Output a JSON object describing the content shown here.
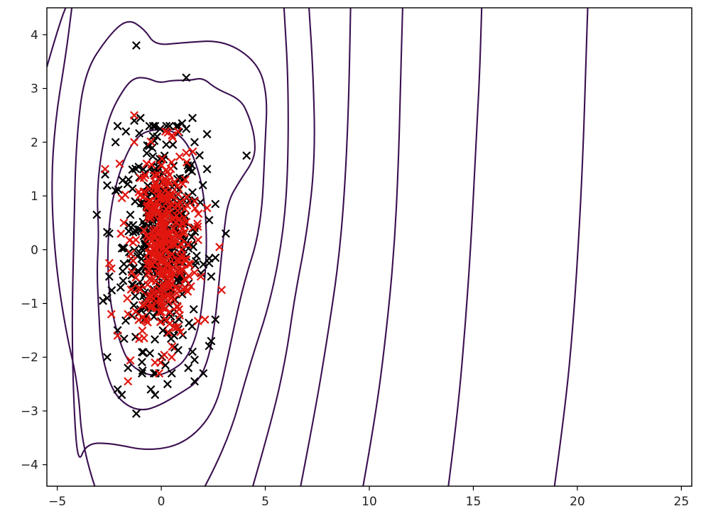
{
  "chart_data": {
    "type": "scatter",
    "title": "",
    "xlabel": "",
    "ylabel": "",
    "xlim": [
      -5.5,
      25.5
    ],
    "ylim": [
      -4.4,
      4.5
    ],
    "x_ticks": [
      -5,
      0,
      5,
      10,
      15,
      20,
      25
    ],
    "y_ticks": [
      -4,
      -3,
      -2,
      -1,
      0,
      1,
      2,
      3,
      4
    ],
    "x_tick_labels": [
      "−5",
      "0",
      "5",
      "10",
      "15",
      "20",
      "25"
    ],
    "y_tick_labels": [
      "−4",
      "−3",
      "−2",
      "−1",
      "0",
      "1",
      "2",
      "3",
      "4"
    ],
    "grid": false,
    "marker": "x",
    "contour_color": "#3b0f50",
    "series": [
      {
        "color": "#000000",
        "points": [
          [
            -1.2,
            3.8
          ],
          [
            1.2,
            3.2
          ],
          [
            -2.1,
            2.3
          ],
          [
            -1.3,
            2.4
          ],
          [
            -1.0,
            2.45
          ],
          [
            -0.3,
            2.3
          ],
          [
            0.4,
            2.3
          ],
          [
            1.0,
            2.35
          ],
          [
            1.5,
            2.45
          ],
          [
            2.2,
            2.15
          ],
          [
            -2.2,
            2.0
          ],
          [
            -1.7,
            2.2
          ],
          [
            1.2,
            2.25
          ],
          [
            1.6,
            2.0
          ],
          [
            4.1,
            1.75
          ],
          [
            -2.7,
            1.4
          ],
          [
            -2.2,
            1.1
          ],
          [
            2.2,
            1.5
          ],
          [
            2.0,
            1.2
          ],
          [
            -3.1,
            0.65
          ],
          [
            -2.5,
            0.3
          ],
          [
            3.1,
            0.3
          ],
          [
            2.6,
            0.85
          ],
          [
            2.3,
            0.55
          ],
          [
            -2.5,
            -0.5
          ],
          [
            -2.6,
            -0.9
          ],
          [
            2.4,
            -0.5
          ],
          [
            2.6,
            -0.15
          ],
          [
            2.3,
            -0.25
          ],
          [
            -2.8,
            -0.95
          ],
          [
            2.6,
            -1.3
          ],
          [
            -2.1,
            -1.5
          ],
          [
            2.4,
            -1.7
          ],
          [
            -2.6,
            -2.0
          ],
          [
            1.5,
            -1.9
          ],
          [
            -1.6,
            -2.2
          ],
          [
            1.3,
            -2.2
          ],
          [
            1.6,
            -2.05
          ],
          [
            -2.1,
            -2.6
          ],
          [
            -1.9,
            -2.7
          ],
          [
            -1.2,
            -3.05
          ],
          [
            -0.5,
            -2.6
          ],
          [
            0.3,
            -2.5
          ],
          [
            1.6,
            -2.45
          ],
          [
            -0.9,
            -2.25
          ],
          [
            0.2,
            -2.15
          ],
          [
            -0.3,
            -2.7
          ],
          [
            0.5,
            -2.3
          ]
        ],
        "cloud": {
          "count": 420,
          "center": [
            0.0,
            0.1
          ],
          "std": [
            0.9,
            0.95
          ],
          "x_range": [
            -2.6,
            2.3
          ],
          "y_range": [
            -2.3,
            2.3
          ]
        }
      },
      {
        "color": "#e0160f",
        "points": [
          [
            -1.3,
            2.5
          ],
          [
            -2.7,
            1.5
          ],
          [
            -1.3,
            2.0
          ],
          [
            0.2,
            2.2
          ],
          [
            0.8,
            2.2
          ],
          [
            1.2,
            1.8
          ],
          [
            -2.0,
            1.6
          ],
          [
            2.8,
            0.05
          ],
          [
            2.9,
            -0.75
          ],
          [
            -2.4,
            -0.35
          ],
          [
            -1.8,
            0.5
          ],
          [
            -2.1,
            -1.6
          ],
          [
            -2.4,
            -1.2
          ],
          [
            1.9,
            -0.5
          ],
          [
            -2.5,
            -0.25
          ],
          [
            -1.6,
            -2.45
          ],
          [
            -0.1,
            -2.3
          ],
          [
            0.5,
            -2.0
          ],
          [
            2.1,
            -1.3
          ],
          [
            -0.7,
            1.6
          ],
          [
            1.6,
            0.9
          ],
          [
            -1.6,
            -1.2
          ]
        ],
        "cloud": {
          "count": 360,
          "center": [
            0.1,
            0.1
          ],
          "std": [
            0.7,
            0.85
          ],
          "x_range": [
            -2.2,
            2.2
          ],
          "y_range": [
            -2.1,
            2.2
          ]
        }
      }
    ],
    "contours": [
      [
        [
          -0.9,
          -2.3
        ],
        [
          -0.2,
          -2.35
        ],
        [
          0.5,
          -2.25
        ],
        [
          1.2,
          -2.05
        ],
        [
          1.8,
          -1.5
        ],
        [
          2.1,
          -0.6
        ],
        [
          2.2,
          0.3
        ],
        [
          2.0,
          1.2
        ],
        [
          1.4,
          1.9
        ],
        [
          0.7,
          2.2
        ],
        [
          -0.2,
          2.25
        ],
        [
          -1.1,
          2.15
        ],
        [
          -1.8,
          1.7
        ],
        [
          -2.4,
          0.9
        ],
        [
          -2.6,
          0.0
        ],
        [
          -2.5,
          -0.9
        ],
        [
          -2.1,
          -1.6
        ],
        [
          -1.6,
          -2.1
        ]
      ],
      [
        [
          -2.4,
          -2.6
        ],
        [
          -1.7,
          -2.9
        ],
        [
          -0.9,
          -3.0
        ],
        [
          -0.1,
          -2.9
        ],
        [
          0.8,
          -2.7
        ],
        [
          1.8,
          -2.45
        ],
        [
          2.3,
          -2.0
        ],
        [
          2.6,
          -1.3
        ],
        [
          2.8,
          -0.5
        ],
        [
          3.0,
          0.3
        ],
        [
          3.2,
          0.9
        ],
        [
          3.8,
          1.3
        ],
        [
          4.5,
          1.7
        ],
        [
          4.5,
          2.1
        ],
        [
          4.2,
          2.5
        ],
        [
          3.8,
          2.8
        ],
        [
          2.6,
          3.0
        ],
        [
          2.0,
          3.2
        ],
        [
          1.4,
          3.15
        ],
        [
          0.5,
          3.15
        ],
        [
          -0.1,
          3.1
        ],
        [
          -0.7,
          3.2
        ],
        [
          -1.3,
          3.2
        ],
        [
          -1.8,
          3.0
        ],
        [
          -2.5,
          2.5
        ],
        [
          -2.9,
          1.8
        ],
        [
          -3.1,
          1.0
        ],
        [
          -3.0,
          0.3
        ],
        [
          -3.1,
          -0.4
        ],
        [
          -3.0,
          -1.2
        ],
        [
          -2.9,
          -1.9
        ]
      ],
      [
        [
          -4.0,
          -4.0
        ],
        [
          -3.6,
          -3.6
        ],
        [
          -2.4,
          -3.6
        ],
        [
          -0.6,
          -3.75
        ],
        [
          1.2,
          -3.6
        ],
        [
          2.6,
          -3.0
        ],
        [
          3.2,
          -2.0
        ],
        [
          3.9,
          -0.7
        ],
        [
          4.8,
          0.4
        ],
        [
          5.0,
          2.0
        ],
        [
          5.1,
          2.9
        ],
        [
          4.6,
          3.5
        ],
        [
          3.0,
          3.9
        ],
        [
          1.0,
          3.85
        ],
        [
          -0.3,
          3.8
        ],
        [
          -0.8,
          4.1
        ],
        [
          -1.6,
          4.3
        ],
        [
          -2.5,
          4.0
        ],
        [
          -3.7,
          3.3
        ],
        [
          -4.1,
          2.0
        ],
        [
          -4.2,
          0.3
        ],
        [
          -4.3,
          -1.4
        ],
        [
          -4.2,
          -3.0
        ]
      ],
      [
        [
          -5.5,
          3.4
        ],
        [
          -5.2,
          3.8
        ],
        [
          -4.8,
          4.3
        ],
        [
          -4.6,
          4.5
        ]
      ],
      [
        [
          -3.2,
          -4.4
        ],
        [
          -3.8,
          -3.7
        ],
        [
          -4.0,
          -2.5
        ],
        [
          -4.6,
          -1.5
        ],
        [
          -5.1,
          -0.2
        ],
        [
          -5.3,
          1.2
        ],
        [
          -5.1,
          2.4
        ],
        [
          -4.6,
          3.6
        ],
        [
          -4.3,
          4.5
        ]
      ],
      [
        [
          2.1,
          -4.4
        ],
        [
          3.2,
          -3.6
        ],
        [
          4.2,
          -2.2
        ],
        [
          5.3,
          -0.9
        ],
        [
          5.9,
          0.4
        ],
        [
          6.1,
          1.6
        ],
        [
          6.1,
          3.2
        ],
        [
          5.9,
          4.5
        ]
      ],
      [
        [
          4.4,
          -4.4
        ],
        [
          5.3,
          -3.2
        ],
        [
          6.0,
          -2.0
        ],
        [
          6.4,
          -0.9
        ],
        [
          7.0,
          0.3
        ],
        [
          7.4,
          1.7
        ],
        [
          7.3,
          3.3
        ],
        [
          7.1,
          4.5
        ]
      ],
      [
        [
          6.7,
          -4.4
        ],
        [
          7.4,
          -3.0
        ],
        [
          8.0,
          -1.6
        ],
        [
          8.5,
          -0.3
        ],
        [
          8.8,
          1.0
        ],
        [
          9.0,
          2.6
        ],
        [
          9.1,
          4.5
        ]
      ],
      [
        [
          9.7,
          -4.4
        ],
        [
          10.3,
          -3.1
        ],
        [
          10.8,
          -1.6
        ],
        [
          11.2,
          0.0
        ],
        [
          11.4,
          1.6
        ],
        [
          11.5,
          3.1
        ],
        [
          11.6,
          4.5
        ]
      ],
      [
        [
          13.8,
          -4.4
        ],
        [
          14.2,
          -3.2
        ],
        [
          14.6,
          -1.5
        ],
        [
          14.9,
          0.2
        ],
        [
          15.1,
          1.8
        ],
        [
          15.3,
          3.2
        ],
        [
          15.4,
          4.5
        ]
      ],
      [
        [
          18.9,
          -4.4
        ],
        [
          19.4,
          -3.0
        ],
        [
          19.8,
          -1.4
        ],
        [
          20.1,
          0.4
        ],
        [
          20.3,
          2.1
        ],
        [
          20.4,
          3.4
        ],
        [
          20.5,
          4.5
        ]
      ]
    ]
  }
}
